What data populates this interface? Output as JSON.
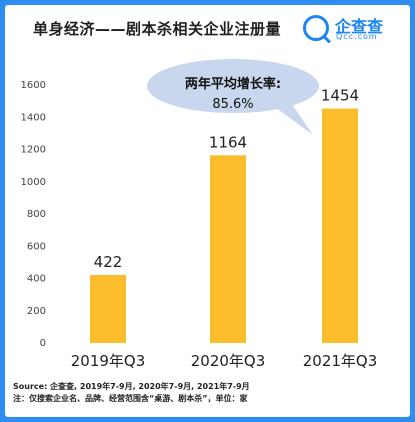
{
  "header": {
    "title": "单身经济——剧本杀相关企业注册量"
  },
  "brand": {
    "name": "企查查",
    "url": "Qcc.com"
  },
  "callout": {
    "label": "两年平均增长率:",
    "value": "85.6%"
  },
  "footer": {
    "source": "Source: 企查查, 2019年7-9月, 2020年7-9月, 2021年7-9月",
    "note": "注：仅搜索企业名、品牌、经营范围含“桌游、剧本杀”，单位：家"
  },
  "colors": {
    "bar": "#fcbd2c",
    "callout_fill": "#c8d7ee",
    "background": "#2d8ef0"
  },
  "chart_data": {
    "type": "bar",
    "categories": [
      "2019年Q3",
      "2020年Q3",
      "2021年Q3"
    ],
    "values": [
      422,
      1164,
      1454
    ],
    "yticks": [
      0,
      200,
      400,
      600,
      800,
      1000,
      1200,
      1400,
      1600
    ],
    "ylim": [
      0,
      1600
    ],
    "grid": false,
    "data_labels": true
  }
}
